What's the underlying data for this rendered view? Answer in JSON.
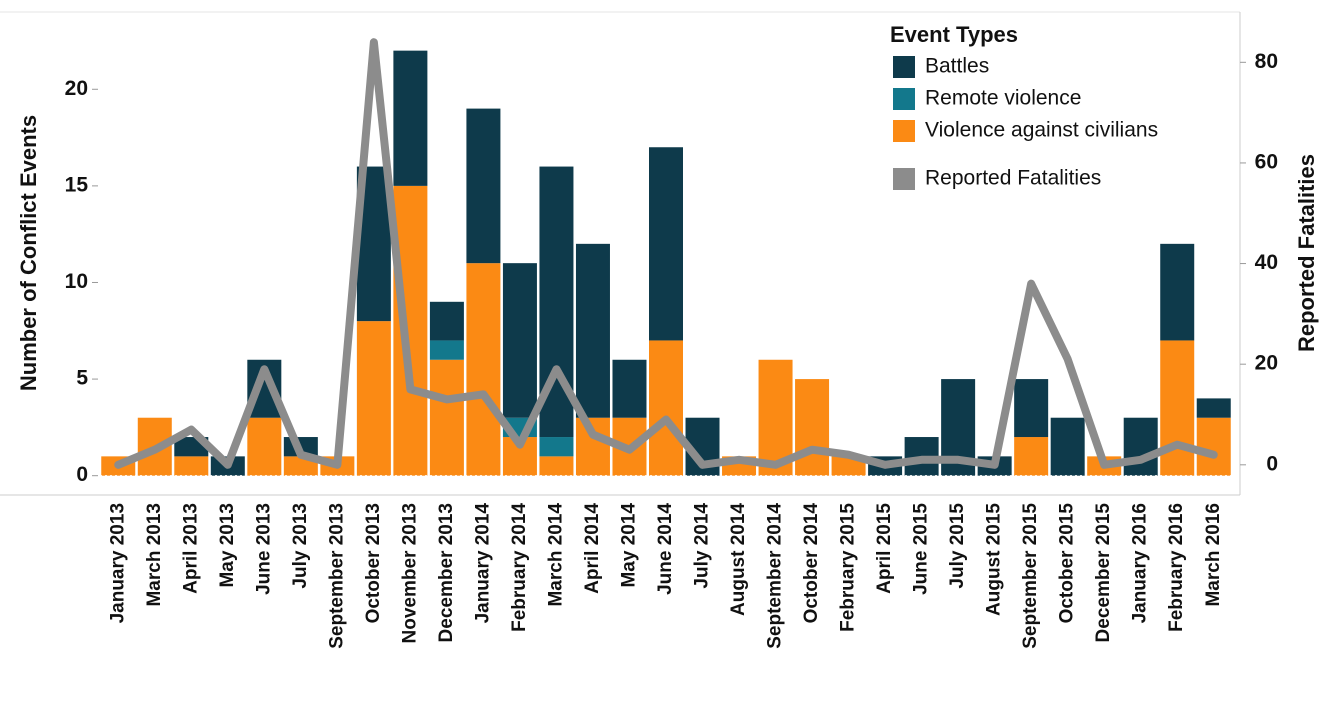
{
  "chart_data": {
    "type": "bar",
    "stacked": true,
    "categories": [
      "January 2013",
      "March 2013",
      "April 2013",
      "May 2013",
      "June 2013",
      "July 2013",
      "September 2013",
      "October 2013",
      "November 2013",
      "December 2013",
      "January 2014",
      "February 2014",
      "March 2014",
      "April 2014",
      "May 2014",
      "June 2014",
      "July 2014",
      "August 2014",
      "September 2014",
      "October 2014",
      "February 2015",
      "April 2015",
      "June 2015",
      "July 2015",
      "August 2015",
      "September 2015",
      "October 2015",
      "December 2015",
      "January 2016",
      "February 2016",
      "March 2016"
    ],
    "series": [
      {
        "name": "Violence against civilians",
        "color": "#fb8a14",
        "values": [
          1,
          3,
          1,
          0,
          3,
          1,
          1,
          8,
          15,
          6,
          11,
          2,
          1,
          3,
          3,
          7,
          0,
          1,
          6,
          5,
          1,
          0,
          0,
          0,
          0,
          2,
          0,
          1,
          0,
          7,
          3
        ]
      },
      {
        "name": "Remote violence",
        "color": "#13788c",
        "values": [
          0,
          0,
          0,
          0,
          0,
          0,
          0,
          0,
          0,
          1,
          0,
          1,
          1,
          0,
          0,
          0,
          0,
          0,
          0,
          0,
          0,
          0,
          0,
          0,
          0,
          0,
          0,
          0,
          0,
          0,
          0
        ]
      },
      {
        "name": "Battles",
        "color": "#0e3a4b",
        "values": [
          0,
          0,
          1,
          1,
          3,
          1,
          0,
          8,
          7,
          2,
          8,
          8,
          14,
          9,
          3,
          10,
          3,
          0,
          0,
          0,
          0,
          1,
          2,
          5,
          1,
          3,
          3,
          0,
          3,
          5,
          1
        ]
      },
      {
        "name": "Reported Fatalities",
        "type": "line",
        "axis": "y2",
        "color": "#8c8c8c",
        "values": [
          0,
          3,
          7,
          0,
          19,
          2,
          0,
          84,
          15,
          13,
          14,
          4,
          19,
          6,
          3,
          9,
          0,
          1,
          0,
          3,
          2,
          0,
          1,
          1,
          0,
          36,
          21,
          0,
          1,
          4,
          2
        ]
      }
    ],
    "legend_title": "Event Types",
    "legend": "top-right",
    "ylabel": "Number of Conflict Events",
    "y2label": "Reported Fatalities",
    "ylim": [
      -1,
      24
    ],
    "yticks": [
      0,
      5,
      10,
      15,
      20
    ],
    "y2lim": [
      -6,
      90
    ],
    "y2ticks": [
      0,
      20,
      40,
      60,
      80
    ]
  }
}
